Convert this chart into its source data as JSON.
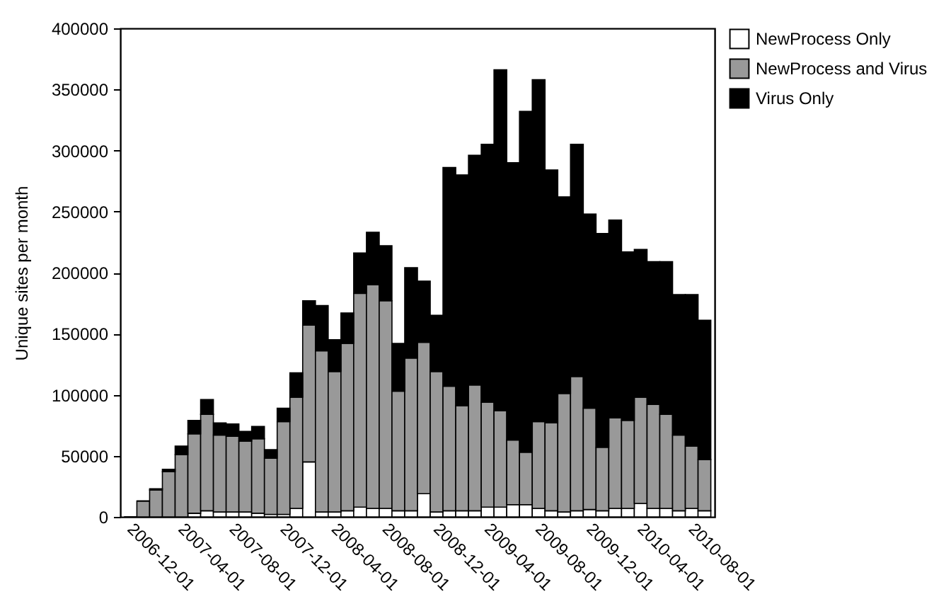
{
  "chart_data": {
    "type": "bar",
    "stacked": true,
    "ylabel": "Unique sites per month",
    "categories": [
      "2006-12-01",
      null,
      null,
      null,
      "2007-04-01",
      null,
      null,
      null,
      "2007-08-01",
      null,
      null,
      null,
      "2007-12-01",
      null,
      null,
      null,
      "2008-04-01",
      null,
      null,
      null,
      "2008-08-01",
      null,
      null,
      null,
      "2008-12-01",
      null,
      null,
      null,
      "2009-04-01",
      null,
      null,
      null,
      "2009-08-01",
      null,
      null,
      null,
      "2009-12-01",
      null,
      null,
      null,
      "2010-04-01",
      null,
      null,
      null,
      "2010-08-01",
      null
    ],
    "series": [
      {
        "name": "NewProcess Only",
        "color": "#ffffff",
        "values": [
          0,
          0,
          0,
          0,
          0,
          3000,
          5000,
          4000,
          4000,
          4000,
          3000,
          2000,
          2000,
          7000,
          45000,
          4000,
          4000,
          5000,
          8000,
          7000,
          7000,
          5000,
          5000,
          19000,
          4000,
          5000,
          5000,
          5000,
          8000,
          8000,
          10000,
          10000,
          7000,
          5000,
          4000,
          5000,
          6000,
          5000,
          7000,
          7000,
          11000,
          7000,
          7000,
          5000,
          7000,
          5000
        ]
      },
      {
        "name": "NewProcess and Virus",
        "color": "#999999",
        "values": [
          null,
          13000,
          22000,
          37000,
          51000,
          65000,
          79000,
          63000,
          62000,
          58000,
          61000,
          46000,
          76000,
          91000,
          112000,
          132000,
          115000,
          137000,
          175000,
          183000,
          170000,
          98000,
          125000,
          124000,
          115000,
          102000,
          86000,
          103000,
          86000,
          79000,
          53000,
          43000,
          71000,
          72000,
          97000,
          110000,
          83000,
          52000,
          74000,
          72000,
          87000,
          85000,
          77000,
          62000,
          51000,
          42000
        ]
      },
      {
        "name": "Virus Only",
        "color": "#000000",
        "values": [
          0,
          0,
          1000,
          2000,
          7000,
          11000,
          12000,
          10000,
          10000,
          8000,
          10000,
          7000,
          11000,
          20000,
          20000,
          37000,
          26000,
          25000,
          33000,
          43000,
          45000,
          39000,
          74000,
          50000,
          46000,
          179000,
          189000,
          188000,
          211000,
          279000,
          227000,
          279000,
          280000,
          207000,
          161000,
          190000,
          159000,
          175000,
          162000,
          138000,
          121000,
          117000,
          125000,
          115000,
          124000,
          114000
        ]
      }
    ],
    "ylim": [
      0,
      400000
    ],
    "yticks": [
      0,
      50000,
      100000,
      150000,
      200000,
      250000,
      300000,
      350000,
      400000
    ],
    "legend": "top right"
  }
}
